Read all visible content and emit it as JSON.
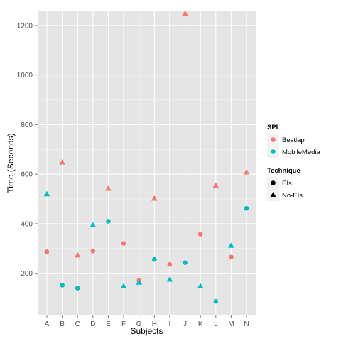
{
  "chart_data": {
    "type": "scatter",
    "xlabel": "Subjects",
    "ylabel": "Time (Seconds)",
    "categories": [
      "A",
      "B",
      "C",
      "D",
      "E",
      "F",
      "G",
      "H",
      "I",
      "J",
      "K",
      "L",
      "M",
      "N"
    ],
    "y_ticks": [
      200,
      400,
      600,
      800,
      1000,
      1200
    ],
    "ylim": [
      30,
      1260
    ],
    "grid": true,
    "legend_placement": "right",
    "legends": [
      {
        "title": "SPL",
        "encoding": "color",
        "entries": [
          {
            "label": "Bestlap",
            "color": "#F8766D"
          },
          {
            "label": "MobileMedia",
            "color": "#00BFC4"
          }
        ]
      },
      {
        "title": "Technique",
        "encoding": "shape",
        "entries": [
          {
            "label": "EIs",
            "shape": "circle"
          },
          {
            "label": "No-EIs",
            "shape": "triangle"
          }
        ]
      }
    ],
    "points": [
      {
        "x": "A",
        "y": 287,
        "spl": "Bestlap",
        "technique": "EIs"
      },
      {
        "x": "A",
        "y": 520,
        "spl": "MobileMedia",
        "technique": "No-EIs"
      },
      {
        "x": "B",
        "y": 648,
        "spl": "Bestlap",
        "technique": "No-EIs"
      },
      {
        "x": "B",
        "y": 152,
        "spl": "MobileMedia",
        "technique": "EIs"
      },
      {
        "x": "C",
        "y": 273,
        "spl": "Bestlap",
        "technique": "No-EIs"
      },
      {
        "x": "C",
        "y": 140,
        "spl": "MobileMedia",
        "technique": "EIs"
      },
      {
        "x": "D",
        "y": 290,
        "spl": "Bestlap",
        "technique": "EIs"
      },
      {
        "x": "D",
        "y": 395,
        "spl": "MobileMedia",
        "technique": "No-EIs"
      },
      {
        "x": "E",
        "y": 542,
        "spl": "Bestlap",
        "technique": "No-EIs"
      },
      {
        "x": "E",
        "y": 410,
        "spl": "MobileMedia",
        "technique": "EIs"
      },
      {
        "x": "F",
        "y": 321,
        "spl": "Bestlap",
        "technique": "EIs"
      },
      {
        "x": "F",
        "y": 148,
        "spl": "MobileMedia",
        "technique": "No-EIs"
      },
      {
        "x": "G",
        "y": 171,
        "spl": "Bestlap",
        "technique": "EIs"
      },
      {
        "x": "G",
        "y": 163,
        "spl": "MobileMedia",
        "technique": "No-EIs"
      },
      {
        "x": "H",
        "y": 502,
        "spl": "Bestlap",
        "technique": "No-EIs"
      },
      {
        "x": "H",
        "y": 256,
        "spl": "MobileMedia",
        "technique": "EIs"
      },
      {
        "x": "I",
        "y": 236,
        "spl": "Bestlap",
        "technique": "EIs"
      },
      {
        "x": "I",
        "y": 175,
        "spl": "MobileMedia",
        "technique": "No-EIs"
      },
      {
        "x": "J",
        "y": 1248,
        "spl": "Bestlap",
        "technique": "No-EIs"
      },
      {
        "x": "J",
        "y": 243,
        "spl": "MobileMedia",
        "technique": "EIs"
      },
      {
        "x": "K",
        "y": 358,
        "spl": "Bestlap",
        "technique": "EIs"
      },
      {
        "x": "K",
        "y": 148,
        "spl": "MobileMedia",
        "technique": "No-EIs"
      },
      {
        "x": "L",
        "y": 554,
        "spl": "Bestlap",
        "technique": "No-EIs"
      },
      {
        "x": "L",
        "y": 87,
        "spl": "MobileMedia",
        "technique": "EIs"
      },
      {
        "x": "M",
        "y": 266,
        "spl": "Bestlap",
        "technique": "EIs"
      },
      {
        "x": "M",
        "y": 312,
        "spl": "MobileMedia",
        "technique": "No-EIs"
      },
      {
        "x": "N",
        "y": 608,
        "spl": "Bestlap",
        "technique": "No-EIs"
      },
      {
        "x": "N",
        "y": 462,
        "spl": "MobileMedia",
        "technique": "EIs"
      }
    ]
  }
}
